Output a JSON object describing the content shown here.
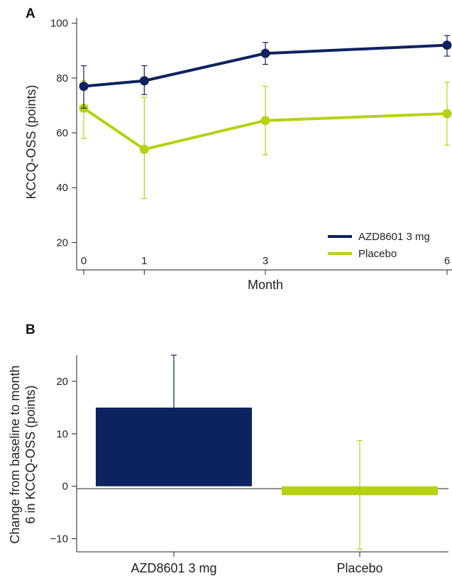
{
  "panel_a_label": "A",
  "panel_b_label": "B",
  "colors": {
    "azd": "#0d2260",
    "placebo": "#b7d111"
  },
  "chart_data": [
    {
      "type": "line",
      "panel": "A",
      "xlabel": "Month",
      "ylabel": "KCCQ-OSS (points)",
      "x": [
        0,
        1,
        3,
        6
      ],
      "x_ticks": [
        "0",
        "1",
        "3",
        "6"
      ],
      "ylim": [
        10,
        102
      ],
      "y_ticks": [
        "20",
        "40",
        "60",
        "80",
        "100"
      ],
      "legend_position": "bottom-right",
      "series": [
        {
          "name": "AZD8601 3 mg",
          "color": "#0d2260",
          "values": [
            77,
            79,
            89,
            92
          ],
          "error_low": [
            69,
            74,
            85,
            88
          ],
          "error_high": [
            84.5,
            84.5,
            93,
            95.5
          ]
        },
        {
          "name": "Placebo",
          "color": "#b7d111",
          "values": [
            69,
            54,
            64.5,
            67
          ],
          "error_low": [
            58,
            36,
            52,
            55.5
          ],
          "error_high": [
            79,
            73,
            77,
            78.5
          ]
        }
      ]
    },
    {
      "type": "bar",
      "panel": "B",
      "ylabel_line1": "Change from baseline to month",
      "ylabel_line2": "6 in KCCQ-OSS (points)",
      "categories": [
        "AZD8601 3 mg",
        "Placebo"
      ],
      "values": [
        15,
        -1.7
      ],
      "error_low": [
        5,
        -12
      ],
      "error_high": [
        25,
        8.7
      ],
      "colors": [
        "#0d2260",
        "#b7d111"
      ],
      "ylim": [
        -12.5,
        25
      ],
      "y_ticks": [
        "−10",
        "0",
        "10",
        "20"
      ]
    }
  ]
}
